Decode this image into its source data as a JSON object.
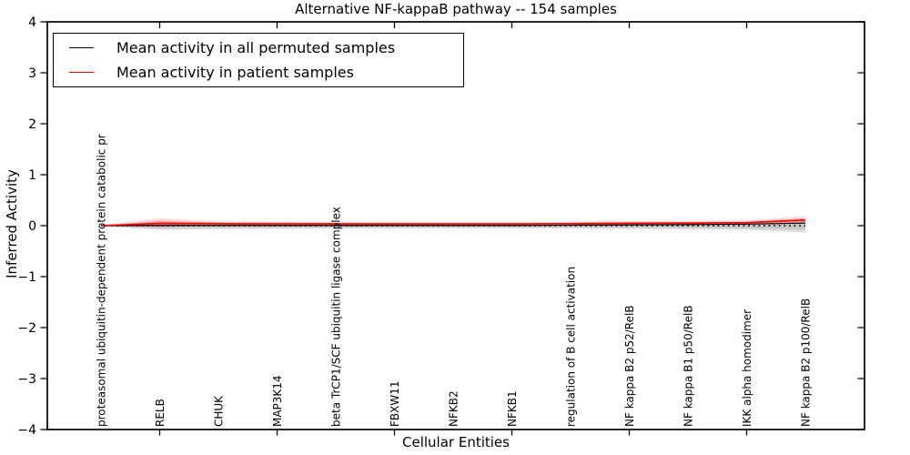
{
  "chart_data": {
    "type": "line",
    "title": "Alternative NF-kappaB pathway -- 154 samples",
    "xlabel": "Cellular Entities",
    "ylabel": "Inferred Activity",
    "ylim": [
      -4,
      4
    ],
    "yticks": [
      4,
      3,
      2,
      1,
      0,
      -1,
      -2,
      -3,
      -4
    ],
    "grid": false,
    "legend_position": "upper left",
    "zero_reference_line": {
      "y": 0,
      "style": "dotted",
      "color": "#000000"
    },
    "tick_mark_indices": [
      1,
      3,
      5,
      7,
      9,
      11
    ],
    "categories": [
      "proteasomal ubiquitin-dependent protein catabolic pr",
      "RELB",
      "CHUK",
      "MAP3K14",
      "beta TrCP1/SCF ubiquitin ligase complex",
      "FBXW11",
      "NFKB2",
      "NFKB1",
      "regulation of B cell activation",
      "NF kappa B2 p52/RelB",
      "NF kappa B1 p50/RelB",
      "IKK alpha homodimer",
      "NF kappa B2 p100/RelB"
    ],
    "series": [
      {
        "id": "permuted",
        "name": "Mean activity in all permuted samples",
        "color": "#000000",
        "width": 1.2,
        "values": [
          0,
          0.005,
          0.005,
          0.005,
          0.005,
          0.005,
          0.005,
          0.005,
          0.01,
          0.015,
          0.02,
          0.03,
          0.05
        ]
      },
      {
        "id": "patient",
        "name": "Mean activity in patient samples",
        "color": "#ff0000",
        "width": 1.6,
        "values": [
          0,
          0.045,
          0.04,
          0.038,
          0.036,
          0.035,
          0.035,
          0.035,
          0.04,
          0.048,
          0.05,
          0.06,
          0.11
        ]
      }
    ],
    "bands": [
      {
        "id": "permuted-outer",
        "color": "#888888",
        "opacity": 0.28,
        "upper": [
          0.012,
          0.075,
          0.062,
          0.058,
          0.055,
          0.052,
          0.05,
          0.05,
          0.055,
          0.062,
          0.065,
          0.075,
          0.105
        ],
        "lower": [
          -0.012,
          -0.082,
          -0.068,
          -0.062,
          -0.058,
          -0.055,
          -0.052,
          -0.052,
          -0.058,
          -0.066,
          -0.07,
          -0.085,
          -0.135
        ]
      },
      {
        "id": "permuted-inner",
        "color": "#888888",
        "opacity": 0.28,
        "upper": [
          0.007,
          0.045,
          0.037,
          0.035,
          0.033,
          0.031,
          0.03,
          0.03,
          0.033,
          0.037,
          0.039,
          0.045,
          0.063
        ],
        "lower": [
          -0.007,
          -0.049,
          -0.041,
          -0.037,
          -0.035,
          -0.033,
          -0.031,
          -0.031,
          -0.035,
          -0.04,
          -0.042,
          -0.051,
          -0.081
        ]
      },
      {
        "id": "patient-outer",
        "color": "#ff0000",
        "opacity": 0.14,
        "upper": [
          0.01,
          0.145,
          0.085,
          0.078,
          0.072,
          0.068,
          0.066,
          0.066,
          0.078,
          0.09,
          0.092,
          0.1,
          0.19
        ],
        "lower": [
          -0.01,
          -0.025,
          -0.002,
          0.004,
          0.008,
          0.01,
          0.012,
          0.012,
          0.014,
          0.018,
          0.02,
          0.026,
          0.045
        ]
      },
      {
        "id": "patient-inner",
        "color": "#ff0000",
        "opacity": 0.2,
        "upper": [
          0.005,
          0.095,
          0.062,
          0.058,
          0.054,
          0.051,
          0.05,
          0.05,
          0.058,
          0.068,
          0.07,
          0.078,
          0.15
        ],
        "lower": [
          -0.005,
          -0.005,
          0.018,
          0.02,
          0.021,
          0.021,
          0.022,
          0.022,
          0.026,
          0.032,
          0.034,
          0.042,
          0.07
        ]
      }
    ]
  }
}
